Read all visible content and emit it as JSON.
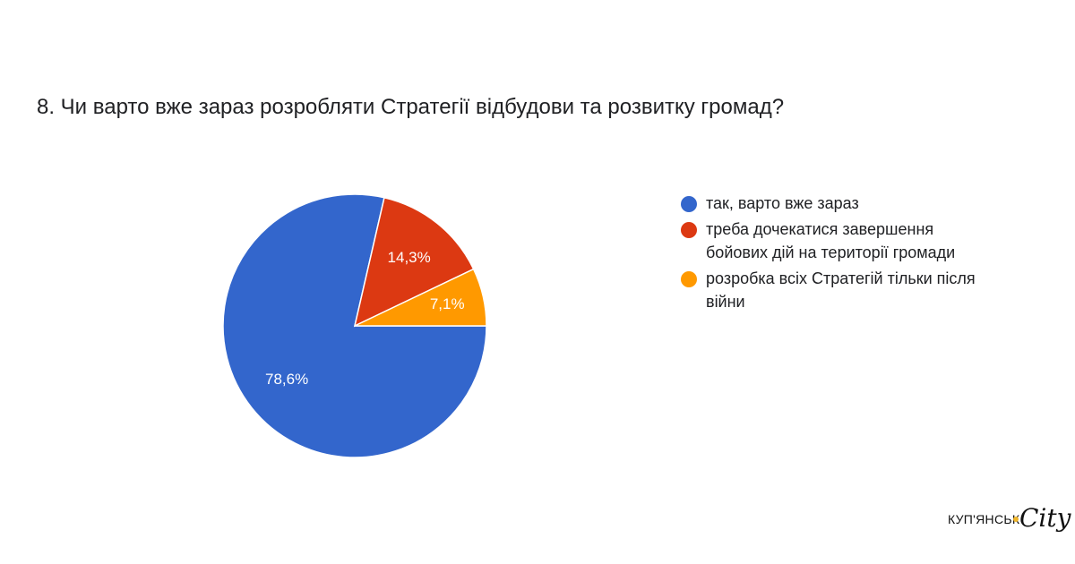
{
  "title": "8. Чи варто вже зараз розробляти Стратегії відбудови та розвитку громад?",
  "chart_data": {
    "type": "pie",
    "title": "8. Чи варто вже зараз розробляти Стратегії відбудови та розвитку громад?",
    "slices": [
      {
        "label": "так, варто вже зараз",
        "value": 78.6,
        "display": "78,6%",
        "color": "#3366cc"
      },
      {
        "label": "треба дочекатися завершення бойових дій на території громади",
        "value": 14.3,
        "display": "14,3%",
        "color": "#dc3912"
      },
      {
        "label": "розробка всіх Стратегій тільки після війни",
        "value": 7.1,
        "display": "7,1%",
        "color": "#ff9900"
      }
    ],
    "legend_position": "right",
    "start_direction": "clockwise from right"
  },
  "legend": [
    {
      "lines": [
        "так, варто вже зараз"
      ],
      "color": "#3366cc"
    },
    {
      "lines": [
        "треба дочекатися завершення",
        "бойових дій на території громади"
      ],
      "color": "#dc3912"
    },
    {
      "lines": [
        "розробка всіх Стратегій тільки після",
        "війни"
      ],
      "color": "#ff9900"
    }
  ],
  "watermark": {
    "text": "КУП'ЯНСЬК",
    "city": "City",
    "dot_color": "#f0b62a"
  }
}
